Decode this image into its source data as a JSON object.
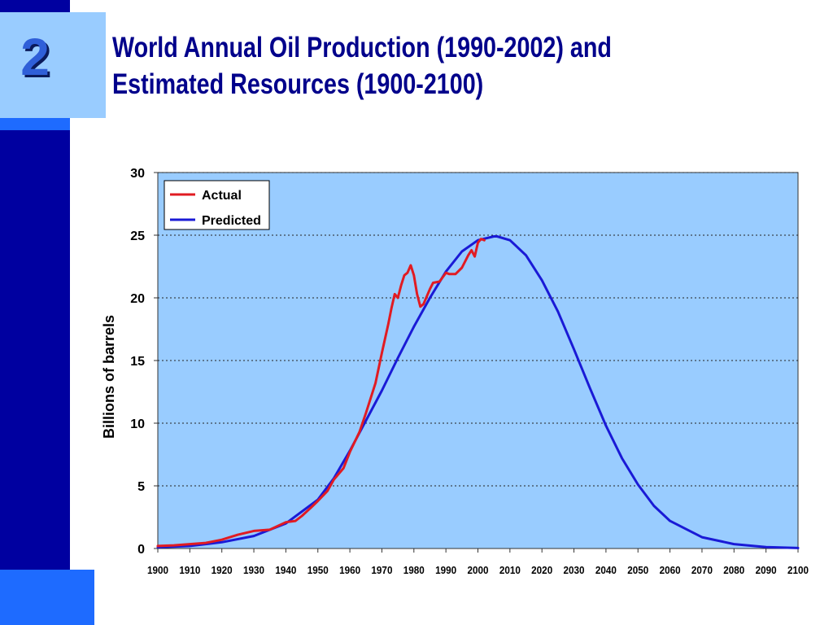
{
  "slide": {
    "number": "2"
  },
  "title": {
    "line1": "World Annual Oil Production (1990-2002) and",
    "line2": "Estimated Resources (1900-2100)"
  },
  "colors": {
    "dark_bar": "#0000A0",
    "bright_bar": "#1E6BFF",
    "light_box": "#99CCFF",
    "plot_bg": "#99CCFF",
    "actual": "#E11B22",
    "predicted": "#1A1AD6",
    "title": "#00008B"
  },
  "chart_data": {
    "type": "line",
    "ylabel": "Billions of barrels",
    "xlabel": "",
    "xlim": [
      1900,
      2100
    ],
    "ylim": [
      0,
      30
    ],
    "y_ticks": [
      "0",
      "5",
      "10",
      "15",
      "20",
      "25",
      "30"
    ],
    "x_ticks": [
      "1900",
      "1910",
      "1920",
      "1930",
      "1940",
      "1950",
      "1960",
      "1970",
      "1980",
      "1990",
      "2000",
      "2010",
      "2020",
      "2030",
      "2040",
      "2050",
      "2060",
      "2070",
      "2080",
      "2090",
      "2100"
    ],
    "grid": "horizontal dotted",
    "legend_position": "top-left",
    "series": [
      {
        "name": "Actual",
        "color": "#E11B22",
        "x": [
          1900,
          1905,
          1910,
          1915,
          1920,
          1925,
          1930,
          1935,
          1940,
          1943,
          1945,
          1948,
          1950,
          1953,
          1955,
          1958,
          1960,
          1963,
          1965,
          1968,
          1970,
          1972,
          1973,
          1974,
          1975,
          1976,
          1977,
          1978,
          1979,
          1980,
          1981,
          1982,
          1983,
          1985,
          1986,
          1988,
          1990,
          1991,
          1993,
          1995,
          1997,
          1998,
          1999,
          2000,
          2001,
          2002
        ],
        "y": [
          0.2,
          0.25,
          0.35,
          0.45,
          0.7,
          1.1,
          1.4,
          1.5,
          2.1,
          2.2,
          2.6,
          3.3,
          3.8,
          4.6,
          5.5,
          6.4,
          7.7,
          9.3,
          10.8,
          13.2,
          15.6,
          17.9,
          19.2,
          20.3,
          20.0,
          21.0,
          21.8,
          22.0,
          22.6,
          21.8,
          20.3,
          19.3,
          19.5,
          20.7,
          21.2,
          21.3,
          22.0,
          21.9,
          21.9,
          22.4,
          23.4,
          23.8,
          23.3,
          24.4,
          24.7,
          24.6
        ]
      },
      {
        "name": "Predicted",
        "color": "#1A1AD6",
        "peak_year": 2006,
        "x": [
          1900,
          1910,
          1920,
          1930,
          1940,
          1950,
          1955,
          1960,
          1965,
          1970,
          1975,
          1980,
          1985,
          1990,
          1995,
          2000,
          2005,
          2006,
          2010,
          2015,
          2020,
          2025,
          2030,
          2035,
          2040,
          2045,
          2050,
          2055,
          2060,
          2070,
          2080,
          2090,
          2100
        ],
        "y": [
          0.1,
          0.2,
          0.5,
          1.0,
          2.0,
          3.9,
          5.6,
          7.8,
          10.2,
          12.6,
          15.2,
          17.7,
          20.0,
          22.1,
          23.7,
          24.6,
          24.9,
          24.9,
          24.6,
          23.4,
          21.4,
          18.9,
          15.9,
          12.8,
          9.8,
          7.2,
          5.1,
          3.4,
          2.2,
          0.9,
          0.35,
          0.12,
          0.04
        ]
      }
    ]
  }
}
